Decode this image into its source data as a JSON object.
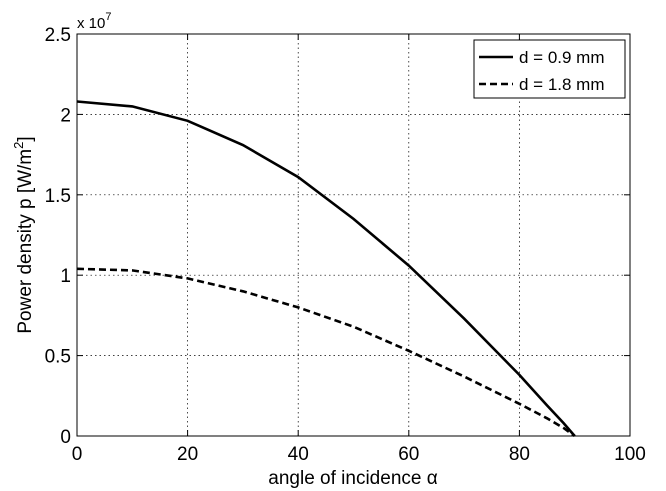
{
  "chart_data": {
    "type": "line",
    "xlabel": "angle of incidence α",
    "ylabel": "Power density p [W/m²]",
    "ylabel_main": "Power density p [W/m",
    "ylabel_sup": "2",
    "ylabel_close": "]",
    "y_exponent_base": "x 10",
    "y_exponent_power": "7",
    "xlim": [
      0,
      100
    ],
    "ylim": [
      0,
      2.5
    ],
    "xticks": [
      "0",
      "20",
      "40",
      "60",
      "80",
      "100"
    ],
    "yticks": [
      "0",
      "0.5",
      "1",
      "1.5",
      "2",
      "2.5"
    ],
    "grid": true,
    "legend_position": "top-right",
    "series": [
      {
        "name": "d = 0.9 mm",
        "style": "solid",
        "x": [
          0,
          10,
          20,
          30,
          40,
          50,
          60,
          70,
          80,
          85,
          88,
          90
        ],
        "y": [
          2.08,
          2.05,
          1.96,
          1.81,
          1.61,
          1.35,
          1.06,
          0.73,
          0.38,
          0.19,
          0.08,
          0
        ]
      },
      {
        "name": "d = 1.8 mm",
        "style": "dashed",
        "x": [
          0,
          10,
          20,
          30,
          40,
          50,
          60,
          70,
          80,
          85,
          88,
          90
        ],
        "y": [
          1.04,
          1.03,
          0.98,
          0.9,
          0.8,
          0.68,
          0.53,
          0.37,
          0.2,
          0.11,
          0.05,
          0
        ]
      }
    ]
  }
}
